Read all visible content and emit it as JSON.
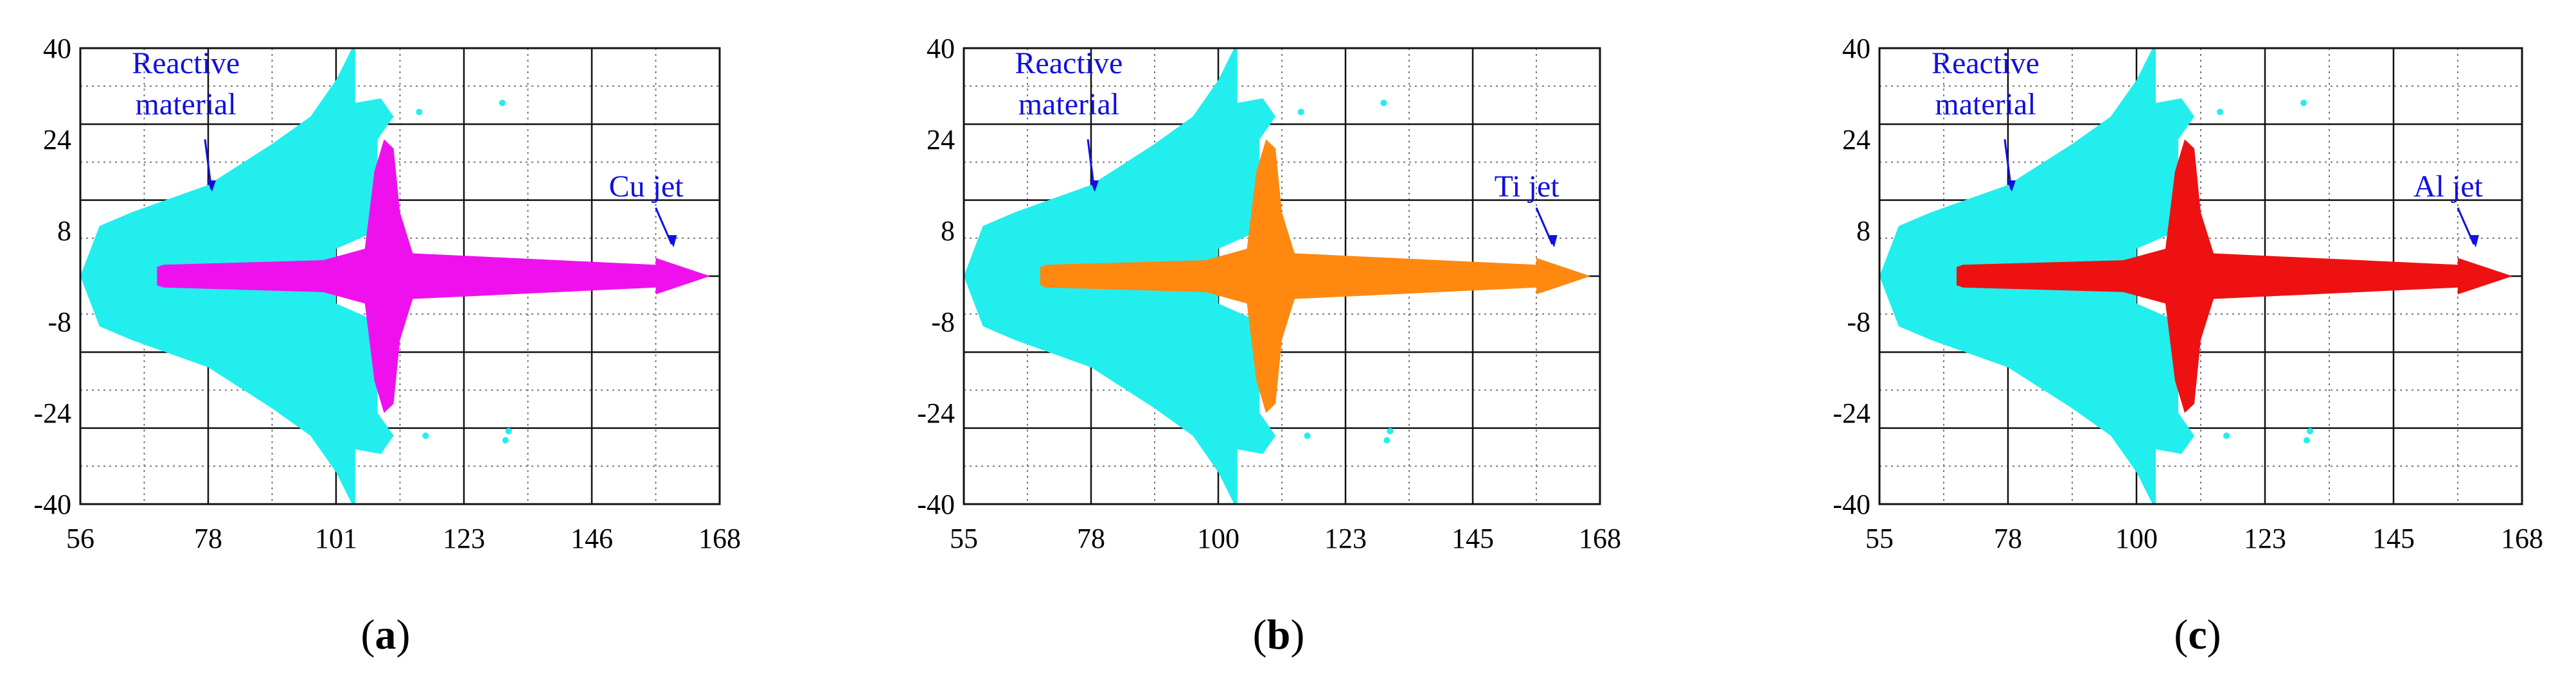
{
  "figure": {
    "panels": [
      {
        "id": "a",
        "caption_open": "(",
        "caption_letter": "a",
        "caption_close": ")",
        "x_ticks": [
          "56",
          "78",
          "101",
          "123",
          "146",
          "168"
        ],
        "y_ticks": [
          "40",
          "24",
          "8",
          "-8",
          "-24",
          "-40"
        ],
        "annotations": {
          "reactive_line1": "Reactive",
          "reactive_line2": "material",
          "jet": "Cu jet"
        },
        "colors": {
          "liner": "#ee11ee",
          "reactive": "#22eeee"
        }
      },
      {
        "id": "b",
        "caption_open": "(",
        "caption_letter": "b",
        "caption_close": ")",
        "x_ticks": [
          "55",
          "78",
          "100",
          "123",
          "145",
          "168"
        ],
        "y_ticks": [
          "40",
          "24",
          "8",
          "-8",
          "-24",
          "-40"
        ],
        "annotations": {
          "reactive_line1": "Reactive",
          "reactive_line2": "material",
          "jet": "Ti jet"
        },
        "colors": {
          "liner": "#ff8811",
          "reactive": "#22eeee"
        }
      },
      {
        "id": "c",
        "caption_open": "(",
        "caption_letter": "c",
        "caption_close": ")",
        "x_ticks": [
          "55",
          "78",
          "100",
          "123",
          "145",
          "168"
        ],
        "y_ticks": [
          "40",
          "24",
          "8",
          "-8",
          "-24",
          "-40"
        ],
        "annotations": {
          "reactive_line1": "Reactive",
          "reactive_line2": "material",
          "jet": "Al jet"
        },
        "colors": {
          "liner": "#ee1111",
          "reactive": "#22eeee"
        }
      }
    ]
  }
}
